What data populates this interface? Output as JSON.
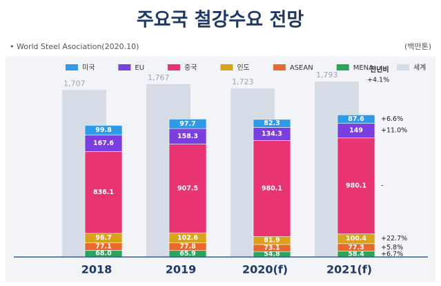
{
  "chart_data": {
    "type": "stacked-bar",
    "title": "주요국 철강수요 전망",
    "source": "• World Steel Asociation(2020.10)",
    "unit": "(백만톤)",
    "categories": [
      "2018",
      "2019",
      "2020(f)",
      "2021(f)"
    ],
    "ylim": [
      0,
      1850
    ],
    "series": [
      {
        "name": "미국",
        "color": "#2f9be8",
        "values": [
          99.8,
          97.7,
          82.3,
          87.6
        ],
        "yoy": "+6.6%"
      },
      {
        "name": "EU",
        "color": "#7b3fe0",
        "values": [
          167.6,
          158.3,
          134.3,
          149
        ],
        "yoy": "+11.0%"
      },
      {
        "name": "중국",
        "color": "#e83472",
        "values": [
          836.1,
          907.5,
          980.1,
          980.1
        ],
        "yoy": "-"
      },
      {
        "name": "인도",
        "color": "#d9a21a",
        "values": [
          96.7,
          102.6,
          81.9,
          100.4
        ],
        "yoy": "+22.7%"
      },
      {
        "name": "ASEAN",
        "color": "#e8692e",
        "values": [
          77.1,
          77.8,
          73.1,
          77.3
        ],
        "yoy": "+5.8%"
      },
      {
        "name": "MENA",
        "color": "#2aa55a",
        "values": [
          68.0,
          65.9,
          54.8,
          58.4
        ],
        "value_labels": [
          "68.0",
          "65.9",
          "54.8",
          "58.4"
        ],
        "yoy": "+6.7%"
      }
    ],
    "world": {
      "name": "세계",
      "color": "#d6dce6",
      "values": [
        1707,
        1767,
        1723,
        1793
      ],
      "value_labels": [
        "1,707",
        "1,767",
        "1,723",
        "1,793"
      ],
      "yoy": "+4.1%"
    },
    "yoy_title": "전년비"
  }
}
